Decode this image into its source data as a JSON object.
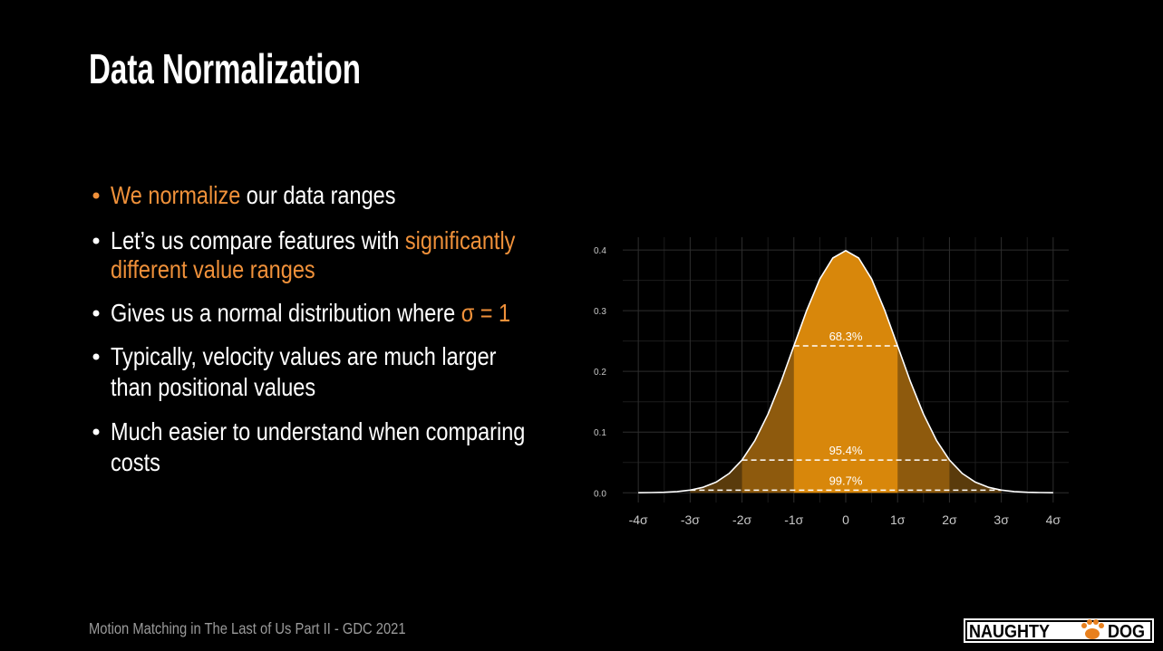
{
  "slide": {
    "title": "Data Normalization",
    "accent_color": "#f0913a",
    "text_color": "#ffffff",
    "bullets": [
      {
        "lines": [
          [
            {
              "text": "We normalize",
              "accent": true
            },
            {
              "text": " our data ranges",
              "accent": false
            }
          ]
        ]
      },
      {
        "lines": [
          [
            {
              "text": "Let’s us compare features with ",
              "accent": false
            },
            {
              "text": "significantly",
              "accent": true
            }
          ],
          [
            {
              "text": "different value ranges",
              "accent": true
            }
          ]
        ]
      },
      {
        "lines": [
          [
            {
              "text": "Gives us a normal distribution where ",
              "accent": false
            },
            {
              "text": "σ = 1",
              "accent": true
            }
          ]
        ]
      },
      {
        "lines": [
          [
            {
              "text": "Typically, velocity values are much larger",
              "accent": false
            }
          ],
          [
            {
              "text": "than positional values",
              "accent": false
            }
          ]
        ]
      },
      {
        "lines": [
          [
            {
              "text": "Much easier to understand when comparing",
              "accent": false
            }
          ],
          [
            {
              "text": "costs",
              "accent": false
            }
          ]
        ]
      }
    ],
    "footer": "Motion Matching in The Last of Us Part II - GDC 2021",
    "logo": {
      "left": "NAUGHTY",
      "right": "DOG"
    }
  },
  "chart_data": {
    "type": "area",
    "x": [
      -4,
      -3.75,
      -3.5,
      -3.25,
      -3,
      -2.75,
      -2.5,
      -2.25,
      -2,
      -1.75,
      -1.5,
      -1.25,
      -1,
      -0.75,
      -0.5,
      -0.25,
      0,
      0.25,
      0.5,
      0.75,
      1,
      1.25,
      1.5,
      1.75,
      2,
      2.25,
      2.5,
      2.75,
      3,
      3.25,
      3.5,
      3.75,
      4
    ],
    "values": [
      0.0001,
      0.0004,
      0.0009,
      0.002,
      0.0044,
      0.0091,
      0.0175,
      0.0317,
      0.054,
      0.0863,
      0.1295,
      0.1826,
      0.242,
      0.3011,
      0.3521,
      0.3867,
      0.3989,
      0.3867,
      0.3521,
      0.3011,
      0.242,
      0.1826,
      0.1295,
      0.0863,
      0.054,
      0.0317,
      0.0175,
      0.0091,
      0.0044,
      0.002,
      0.0009,
      0.0004,
      0.0001
    ],
    "color": "#ffffff",
    "bands": [
      {
        "label": "99.7%",
        "from": -3,
        "to": 3,
        "level": 0.0044,
        "color": "#5a3b0c"
      },
      {
        "label": "95.4%",
        "from": -2,
        "to": 2,
        "level": 0.054,
        "color": "#8e5a0d"
      },
      {
        "label": "68.3%",
        "from": -1,
        "to": 1,
        "level": 0.242,
        "color": "#d8870b"
      }
    ],
    "xlim": [
      -4.3,
      4.3
    ],
    "ylim": [
      -0.016,
      0.421
    ],
    "xticks": [
      {
        "value": -4,
        "label": "-4σ"
      },
      {
        "value": -3,
        "label": "-3σ"
      },
      {
        "value": -2,
        "label": "-2σ"
      },
      {
        "value": -1,
        "label": "-1σ"
      },
      0,
      {
        "value": 1,
        "label": "1σ"
      },
      {
        "value": 2,
        "label": "2σ"
      },
      {
        "value": 3,
        "label": "3σ"
      },
      {
        "value": 4,
        "label": "4σ"
      }
    ],
    "yticks": [
      {
        "value": 0,
        "label": "0.0"
      },
      0.1,
      0.2,
      0.3,
      0.4
    ],
    "grid": true
  }
}
